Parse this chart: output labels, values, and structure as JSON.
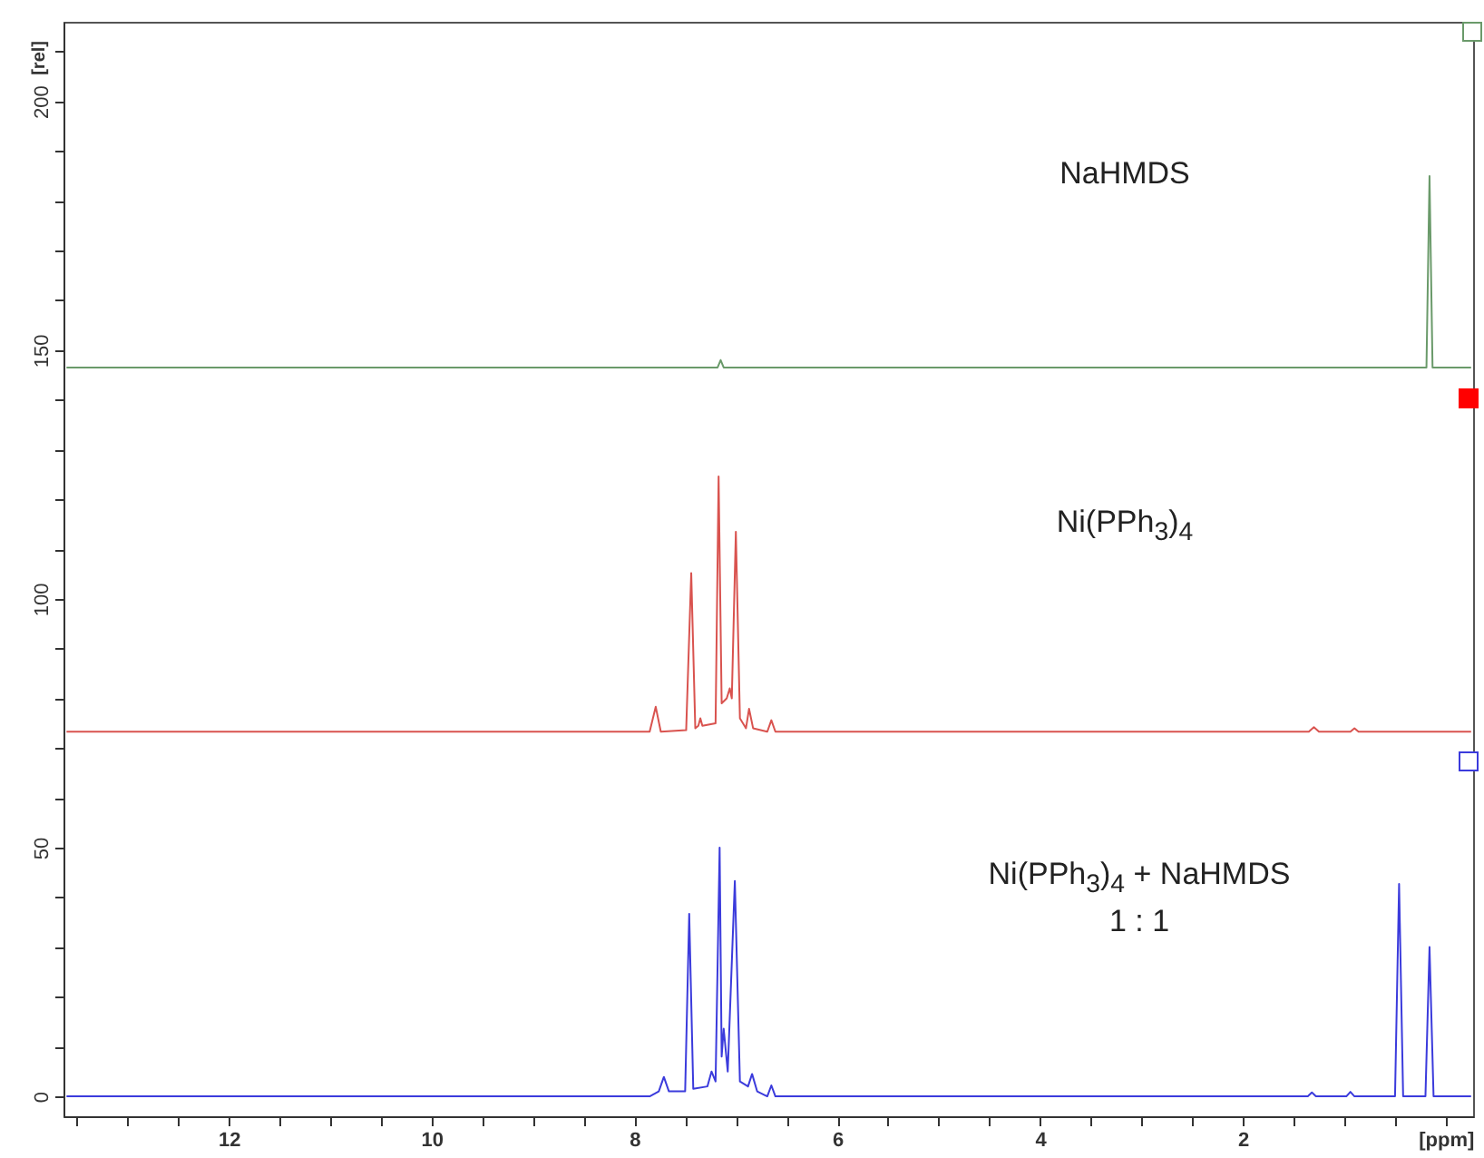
{
  "chart_data": {
    "type": "line",
    "xlim": [
      13.63,
      -0.27
    ],
    "ylim": [
      -4,
      216
    ],
    "xticks": [
      {
        "value": 13.5,
        "label": null
      },
      {
        "value": 13,
        "label": null
      },
      {
        "value": 12.5,
        "label": null
      },
      12,
      {
        "value": 11.5,
        "label": null
      },
      {
        "value": 11,
        "label": null
      },
      {
        "value": 10.5,
        "label": null
      },
      10,
      {
        "value": 9.5,
        "label": null
      },
      {
        "value": 9,
        "label": null
      },
      {
        "value": 8.5,
        "label": null
      },
      8,
      {
        "value": 7.5,
        "label": null
      },
      {
        "value": 7,
        "label": null
      },
      {
        "value": 6.5,
        "label": null
      },
      6,
      {
        "value": 5.5,
        "label": null
      },
      {
        "value": 5,
        "label": null
      },
      {
        "value": 4.5,
        "label": null
      },
      4,
      {
        "value": 3.5,
        "label": null
      },
      {
        "value": 3,
        "label": null
      },
      {
        "value": 2.5,
        "label": null
      },
      2,
      {
        "value": 1.5,
        "label": null
      },
      {
        "value": 1,
        "label": null
      },
      {
        "value": 0.5,
        "label": null
      },
      {
        "value": 0,
        "label": "[ppm]"
      }
    ],
    "yticks": [
      0,
      {
        "value": 10,
        "label": null
      },
      {
        "value": 20,
        "label": null
      },
      {
        "value": 30,
        "label": null
      },
      {
        "value": 40,
        "label": null
      },
      50,
      {
        "value": 60,
        "label": null
      },
      {
        "value": 70,
        "label": null
      },
      {
        "value": 80,
        "label": null
      },
      {
        "value": 90,
        "label": null
      },
      100,
      {
        "value": 110,
        "label": null
      },
      {
        "value": 120,
        "label": null
      },
      {
        "value": 130,
        "label": null
      },
      {
        "value": 140,
        "label": null
      },
      150,
      {
        "value": 160,
        "label": null
      },
      {
        "value": 170,
        "label": null
      },
      {
        "value": 180,
        "label": null
      },
      {
        "value": 190,
        "label": null
      },
      200,
      {
        "value": 210,
        "label": null
      }
    ],
    "ylabel": "[rel]",
    "grid": false,
    "marker": "none",
    "line_style": "solid",
    "annotations": [
      "NaHMDS",
      "Ni(PPh$_{3}$)$_{4}$",
      "Ni(PPh$_{3}$)$_{4}$ + NaHMDS",
      "1 : 1"
    ],
    "series": [
      {
        "color": "#6a9a6a",
        "x": [
          13.6,
          7.18,
          7.15,
          7.12,
          0.19,
          0.16,
          0.13,
          -0.25
        ],
        "values": [
          146.5,
          146.5,
          148,
          146.5,
          146.5,
          185,
          146.5,
          146.5
        ]
      },
      {
        "color": "#d9534f",
        "x": [
          13.6,
          7.85,
          7.79,
          7.74,
          7.49,
          7.44,
          7.4,
          7.37,
          7.35,
          7.33,
          7.2,
          7.17,
          7.14,
          7.09,
          7.06,
          7.04,
          7.0,
          6.96,
          6.9,
          6.87,
          6.83,
          6.69,
          6.65,
          6.61,
          1.35,
          1.3,
          1.25,
          0.94,
          0.9,
          0.86,
          -0.25
        ],
        "values": [
          73.3,
          73.3,
          78.3,
          73.3,
          73.6,
          105.2,
          74,
          74.5,
          76,
          74.5,
          75,
          124.6,
          79,
          80,
          82,
          80,
          113.5,
          76,
          74,
          77.9,
          74,
          73.3,
          75.6,
          73.3,
          73.3,
          74.2,
          73.3,
          73.3,
          74,
          73.3,
          73.3
        ]
      },
      {
        "color": "#3b3bdc",
        "x": [
          13.6,
          7.85,
          7.76,
          7.71,
          7.66,
          7.5,
          7.46,
          7.42,
          7.28,
          7.24,
          7.2,
          7.16,
          7.14,
          7.12,
          7.08,
          7.01,
          6.96,
          6.88,
          6.84,
          6.79,
          6.69,
          6.65,
          6.61,
          1.36,
          1.32,
          1.28,
          0.98,
          0.94,
          0.9,
          0.5,
          0.46,
          0.42,
          0.2,
          0.16,
          0.12,
          -0.25
        ],
        "values": [
          0,
          0,
          1,
          3.9,
          1,
          1,
          36.7,
          1.5,
          2,
          5,
          3,
          50,
          8,
          13.6,
          5,
          43.3,
          3,
          2,
          4.5,
          1,
          0,
          2.2,
          0,
          0,
          0.8,
          0,
          0,
          0.9,
          0,
          0,
          42.7,
          0,
          0,
          30,
          0,
          0
        ]
      }
    ]
  }
}
